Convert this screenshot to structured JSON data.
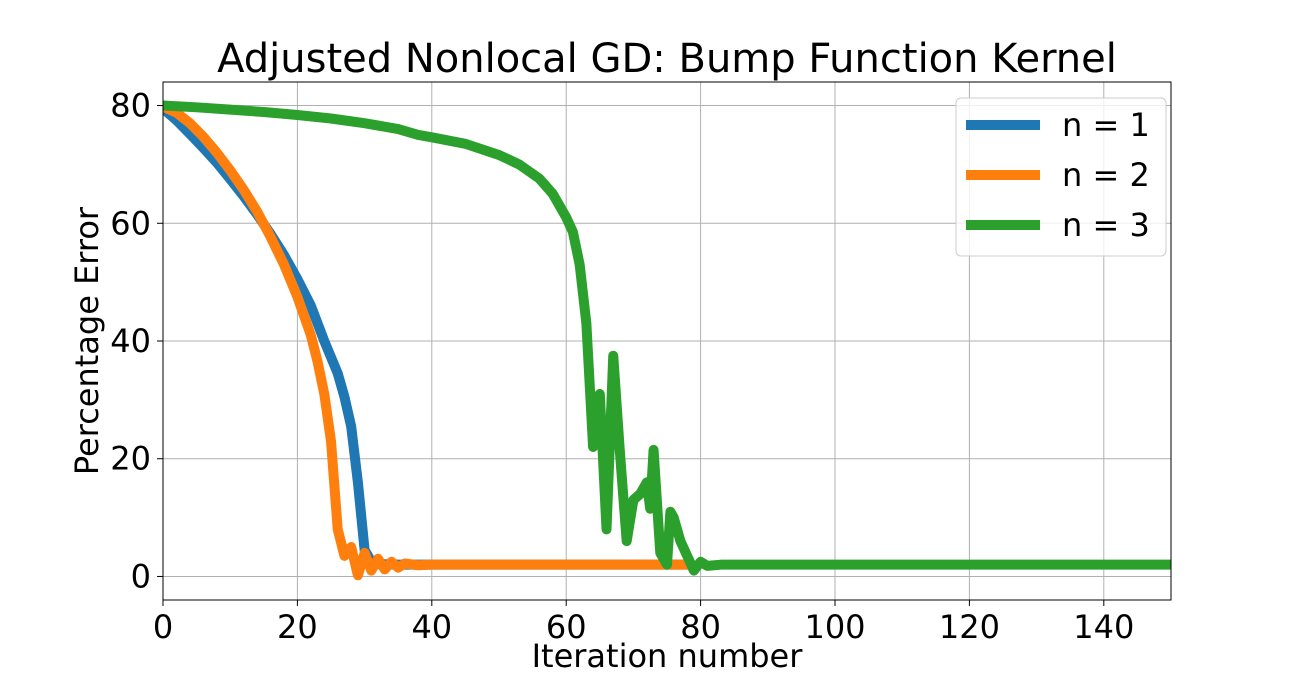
{
  "chart_data": {
    "type": "line",
    "title": "Adjusted Nonlocal GD: Bump Function Kernel",
    "xlabel": "Iteration number",
    "ylabel": "Percentage Error",
    "xlim": [
      0,
      150
    ],
    "ylim": [
      -4,
      84
    ],
    "xticks": [
      0,
      20,
      40,
      60,
      80,
      100,
      120,
      140
    ],
    "yticks": [
      0,
      20,
      40,
      60,
      80
    ],
    "grid": true,
    "legend_position": "top-right",
    "series": [
      {
        "name": "n = 1",
        "color": "#1f77b4",
        "points": [
          [
            0,
            79.5
          ],
          [
            2,
            77.5
          ],
          [
            4,
            75.2
          ],
          [
            6,
            72.8
          ],
          [
            8,
            70.3
          ],
          [
            10,
            67.5
          ],
          [
            12,
            64.6
          ],
          [
            14,
            61.5
          ],
          [
            16,
            58.2
          ],
          [
            18,
            54.6
          ],
          [
            20,
            50.5
          ],
          [
            22,
            46.0
          ],
          [
            24,
            40.0
          ],
          [
            26,
            34.5
          ],
          [
            27,
            30.5
          ],
          [
            28,
            25.5
          ],
          [
            29,
            16.0
          ],
          [
            30,
            4.5
          ],
          [
            31,
            2.5
          ],
          [
            32,
            2.1
          ],
          [
            35,
            2.0
          ],
          [
            40,
            2.0
          ],
          [
            50,
            2.0
          ],
          [
            60,
            2.0
          ],
          [
            70,
            2.0
          ],
          [
            78,
            2.0
          ]
        ]
      },
      {
        "name": "n = 2",
        "color": "#ff7f0e",
        "points": [
          [
            0,
            79.8
          ],
          [
            2,
            78.8
          ],
          [
            4,
            77.0
          ],
          [
            6,
            74.7
          ],
          [
            8,
            72.0
          ],
          [
            10,
            69.0
          ],
          [
            12,
            65.7
          ],
          [
            14,
            62.0
          ],
          [
            16,
            57.7
          ],
          [
            18,
            53.0
          ],
          [
            20,
            47.5
          ],
          [
            22,
            41.0
          ],
          [
            23,
            36.5
          ],
          [
            24,
            31.0
          ],
          [
            25,
            23.0
          ],
          [
            26,
            8.0
          ],
          [
            27,
            3.5
          ],
          [
            28,
            5.0
          ],
          [
            29,
            0.2
          ],
          [
            30,
            4.0
          ],
          [
            31,
            1.0
          ],
          [
            32,
            3.0
          ],
          [
            33,
            1.2
          ],
          [
            34,
            2.5
          ],
          [
            35,
            1.5
          ],
          [
            36,
            2.2
          ],
          [
            38,
            1.9
          ],
          [
            40,
            2.0
          ],
          [
            50,
            2.0
          ],
          [
            60,
            2.0
          ],
          [
            70,
            2.0
          ],
          [
            78,
            2.0
          ]
        ]
      },
      {
        "name": "n = 3",
        "color": "#2ca02c",
        "points": [
          [
            0,
            80.0
          ],
          [
            5,
            79.7
          ],
          [
            10,
            79.3
          ],
          [
            15,
            78.9
          ],
          [
            20,
            78.4
          ],
          [
            25,
            77.8
          ],
          [
            30,
            77.0
          ],
          [
            35,
            76.0
          ],
          [
            38,
            75.0
          ],
          [
            40,
            74.6
          ],
          [
            45,
            73.5
          ],
          [
            50,
            71.6
          ],
          [
            53,
            70.0
          ],
          [
            56,
            67.6
          ],
          [
            58,
            65.0
          ],
          [
            60,
            61.0
          ],
          [
            61,
            58.5
          ],
          [
            62,
            53.0
          ],
          [
            63,
            43.0
          ],
          [
            64,
            22.0
          ],
          [
            65,
            31.0
          ],
          [
            66,
            8.0
          ],
          [
            67,
            37.5
          ],
          [
            68,
            21.0
          ],
          [
            69,
            6.0
          ],
          [
            70,
            13.0
          ],
          [
            71,
            14.0
          ],
          [
            72,
            16.0
          ],
          [
            72.5,
            11.5
          ],
          [
            73,
            21.5
          ],
          [
            74,
            4.0
          ],
          [
            75,
            2.0
          ],
          [
            75.5,
            11.0
          ],
          [
            76,
            10.0
          ],
          [
            77,
            6.0
          ],
          [
            78,
            3.5
          ],
          [
            79,
            1.0
          ],
          [
            80,
            2.5
          ],
          [
            81,
            1.8
          ],
          [
            83,
            2.0
          ],
          [
            90,
            2.0
          ],
          [
            100,
            2.0
          ],
          [
            120,
            2.0
          ],
          [
            140,
            2.0
          ],
          [
            150,
            2.0
          ]
        ]
      }
    ]
  }
}
